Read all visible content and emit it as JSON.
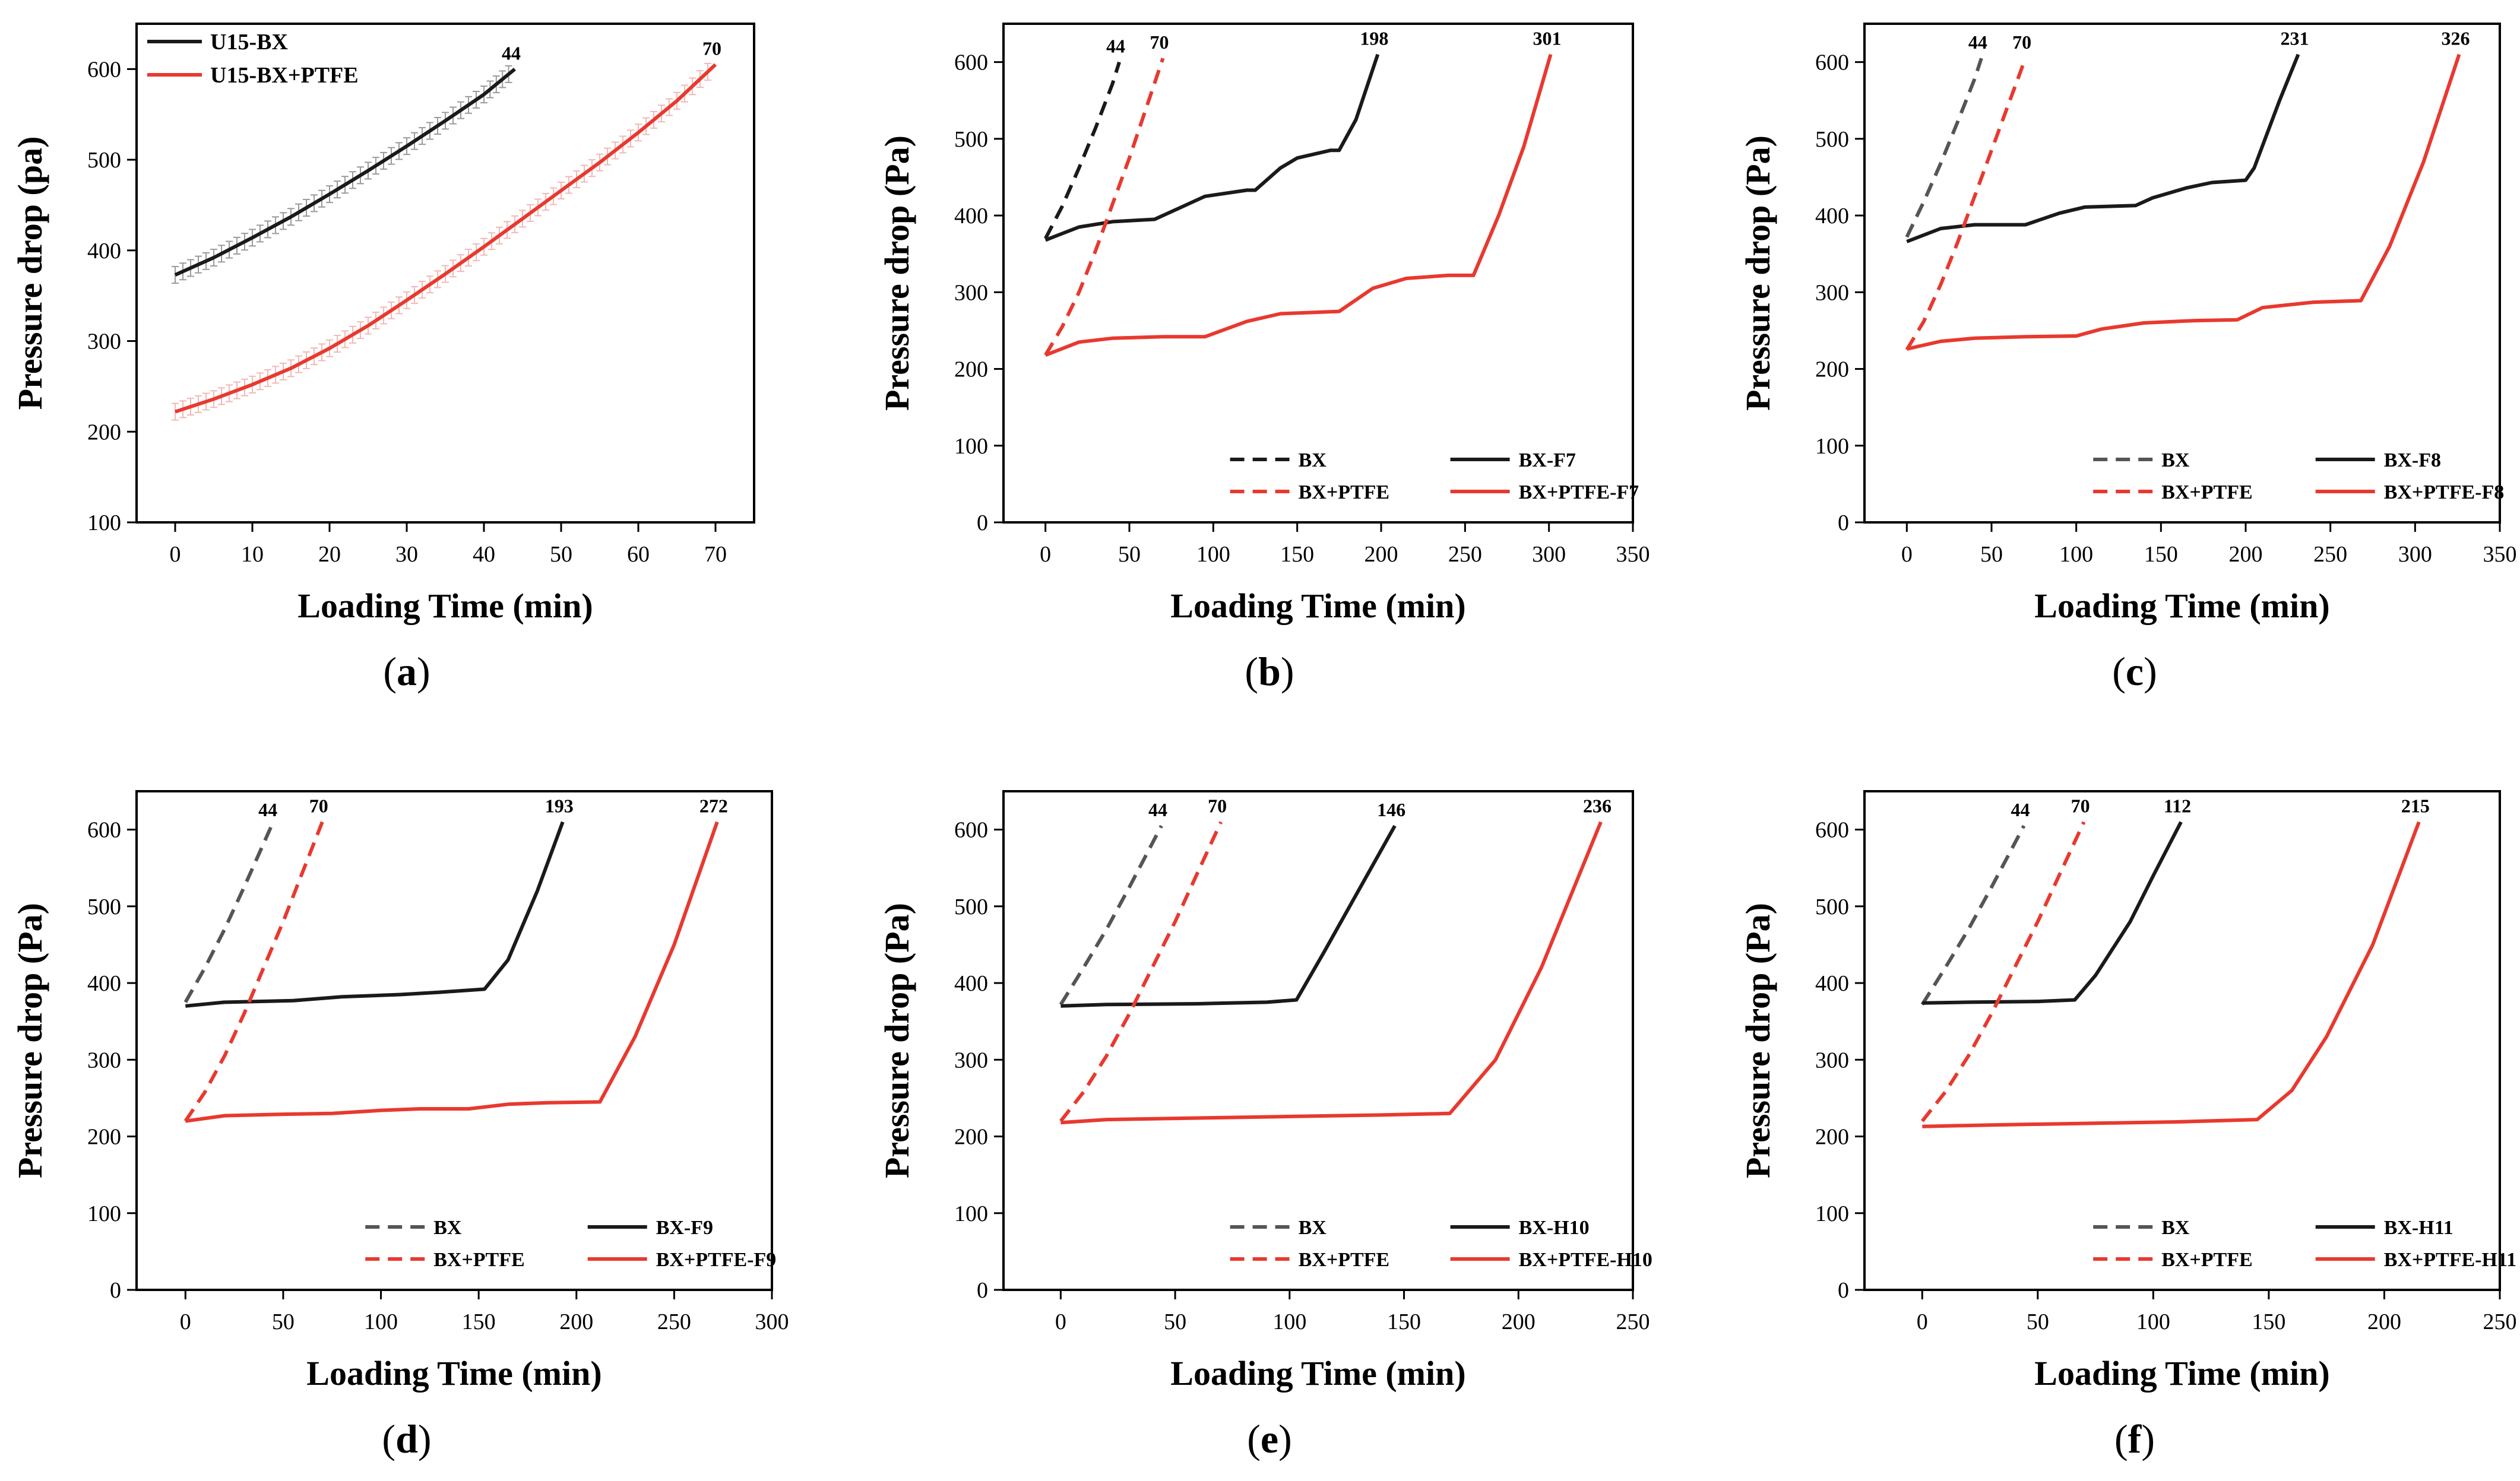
{
  "figure": {
    "captions": [
      "a",
      "b",
      "c",
      "d",
      "e",
      "f"
    ]
  },
  "colors": {
    "black": "#1a1a1a",
    "gray": "#555555",
    "red": "#e8392f",
    "errorbar": "#f2b8b4"
  },
  "chart_data": [
    {
      "panel": "a",
      "type": "line",
      "xlabel": "Loading Time (min)",
      "ylabel": "Pressure drop (pa)",
      "xlim": [
        -5,
        75
      ],
      "ylim": [
        100,
        650
      ],
      "xticks": [
        0,
        10,
        20,
        30,
        40,
        50,
        60,
        70
      ],
      "yticks": [
        100,
        200,
        300,
        400,
        500,
        600
      ],
      "legend": "top-left",
      "series": [
        {
          "name": "U15-BX",
          "color": "black",
          "dash": "solid",
          "legend": true,
          "errorbars": true,
          "end_label": "44",
          "x": [
            0,
            5,
            10,
            15,
            20,
            25,
            30,
            35,
            40,
            44
          ],
          "y": [
            373,
            392,
            414,
            437,
            462,
            488,
            515,
            543,
            572,
            600
          ]
        },
        {
          "name": "U15-BX+PTFE",
          "color": "red",
          "dash": "solid",
          "legend": true,
          "errorbars": true,
          "end_label": "70",
          "x": [
            0,
            5,
            10,
            15,
            20,
            25,
            30,
            35,
            40,
            45,
            50,
            55,
            60,
            65,
            70
          ],
          "y": [
            222,
            236,
            252,
            270,
            292,
            317,
            345,
            374,
            404,
            435,
            466,
            497,
            530,
            565,
            605
          ]
        }
      ]
    },
    {
      "panel": "b",
      "type": "line",
      "xlabel": "Loading Time (min)",
      "ylabel": "Pressure drop (Pa)",
      "xlim": [
        -25,
        350
      ],
      "ylim": [
        0,
        650
      ],
      "xticks": [
        0,
        50,
        100,
        150,
        200,
        250,
        300,
        350
      ],
      "yticks": [
        0,
        100,
        200,
        300,
        400,
        500,
        600
      ],
      "legend": "bottom-right",
      "series": [
        {
          "name": "BX",
          "color": "black",
          "dash": "dashed",
          "legend": true,
          "end_label": "44",
          "x": [
            0,
            10,
            20,
            30,
            40,
            44
          ],
          "y": [
            370,
            412,
            462,
            515,
            572,
            600
          ]
        },
        {
          "name": "BX-F7",
          "color": "black",
          "dash": "solid",
          "legend": true,
          "end_label": "198",
          "x": [
            0,
            20,
            40,
            65,
            80,
            95,
            120,
            125,
            140,
            150,
            170,
            175,
            185,
            198
          ],
          "y": [
            368,
            385,
            392,
            395,
            410,
            425,
            433,
            433,
            462,
            475,
            485,
            485,
            525,
            610
          ]
        },
        {
          "name": "BX+PTFE",
          "color": "red",
          "dash": "dashed",
          "legend": true,
          "end_label": "70",
          "x": [
            0,
            10,
            20,
            30,
            40,
            50,
            60,
            70
          ],
          "y": [
            218,
            255,
            300,
            355,
            415,
            475,
            540,
            605
          ]
        },
        {
          "name": "BX+PTFE-F7",
          "color": "red",
          "dash": "solid",
          "legend": true,
          "end_label": "301",
          "x": [
            0,
            20,
            40,
            70,
            95,
            120,
            140,
            175,
            195,
            215,
            240,
            255,
            270,
            285,
            301
          ],
          "y": [
            218,
            235,
            240,
            242,
            242,
            262,
            272,
            275,
            305,
            318,
            322,
            322,
            400,
            490,
            610
          ]
        }
      ]
    },
    {
      "panel": "c",
      "type": "line",
      "xlabel": "Loading Time (min)",
      "ylabel": "Pressure drop (Pa)",
      "xlim": [
        -25,
        350
      ],
      "ylim": [
        0,
        650
      ],
      "xticks": [
        0,
        50,
        100,
        150,
        200,
        250,
        300,
        350
      ],
      "yticks": [
        0,
        100,
        200,
        300,
        400,
        500,
        600
      ],
      "legend": "bottom-right",
      "series": [
        {
          "name": "BX",
          "color": "gray",
          "dash": "dashed",
          "legend": true,
          "end_label": "44",
          "x": [
            0,
            10,
            20,
            30,
            40,
            44
          ],
          "y": [
            372,
            418,
            468,
            522,
            578,
            605
          ]
        },
        {
          "name": "BX-F8",
          "color": "black",
          "dash": "solid",
          "legend": true,
          "end_label": "231",
          "x": [
            0,
            20,
            40,
            70,
            90,
            105,
            135,
            145,
            165,
            180,
            200,
            205,
            220,
            231
          ],
          "y": [
            366,
            383,
            388,
            388,
            403,
            411,
            413,
            423,
            436,
            443,
            446,
            462,
            550,
            610
          ]
        },
        {
          "name": "BX+PTFE",
          "color": "red",
          "dash": "dashed",
          "legend": true,
          "end_label": "70",
          "x": [
            0,
            10,
            20,
            30,
            40,
            50,
            60,
            70
          ],
          "y": [
            225,
            262,
            310,
            365,
            425,
            485,
            545,
            605
          ]
        },
        {
          "name": "BX+PTFE-F8",
          "color": "red",
          "dash": "solid",
          "legend": true,
          "end_label": "326",
          "x": [
            0,
            20,
            40,
            70,
            100,
            115,
            140,
            170,
            195,
            210,
            240,
            268,
            285,
            305,
            326
          ],
          "y": [
            226,
            236,
            240,
            242,
            243,
            252,
            260,
            263,
            264,
            280,
            287,
            289,
            360,
            470,
            610
          ]
        }
      ]
    },
    {
      "panel": "d",
      "type": "line",
      "xlabel": "Loading Time (min)",
      "ylabel": "Pressure drop (Pa)",
      "xlim": [
        -25,
        300
      ],
      "ylim": [
        0,
        650
      ],
      "xticks": [
        0,
        50,
        100,
        150,
        200,
        250,
        300
      ],
      "yticks": [
        0,
        100,
        200,
        300,
        400,
        500,
        600
      ],
      "legend": "bottom-right",
      "series": [
        {
          "name": "BX",
          "color": "gray",
          "dash": "dashed",
          "legend": true,
          "end_label": "44",
          "x": [
            0,
            10,
            20,
            30,
            40,
            44
          ],
          "y": [
            375,
            420,
            470,
            525,
            582,
            605
          ]
        },
        {
          "name": "BX-F9",
          "color": "black",
          "dash": "solid",
          "legend": true,
          "end_label": "193",
          "x": [
            0,
            20,
            55,
            80,
            100,
            110,
            130,
            153,
            165,
            180,
            193
          ],
          "y": [
            370,
            375,
            377,
            382,
            384,
            385,
            388,
            392,
            430,
            520,
            610
          ]
        },
        {
          "name": "BX+PTFE",
          "color": "red",
          "dash": "dashed",
          "legend": true,
          "end_label": "70",
          "x": [
            0,
            10,
            20,
            30,
            40,
            50,
            60,
            70
          ],
          "y": [
            220,
            258,
            305,
            360,
            420,
            480,
            545,
            610
          ]
        },
        {
          "name": "BX+PTFE-F9",
          "color": "red",
          "dash": "solid",
          "legend": true,
          "end_label": "272",
          "x": [
            0,
            20,
            50,
            75,
            100,
            120,
            145,
            165,
            185,
            212,
            230,
            250,
            272
          ],
          "y": [
            220,
            227,
            229,
            230,
            234,
            236,
            236,
            242,
            244,
            245,
            330,
            450,
            610
          ]
        }
      ]
    },
    {
      "panel": "e",
      "type": "line",
      "xlabel": "Loading Time (min)",
      "ylabel": "Pressure drop (Pa)",
      "xlim": [
        -25,
        250
      ],
      "ylim": [
        0,
        650
      ],
      "xticks": [
        0,
        50,
        100,
        150,
        200,
        250
      ],
      "yticks": [
        0,
        100,
        200,
        300,
        400,
        500,
        600
      ],
      "legend": "bottom-right",
      "series": [
        {
          "name": "BX",
          "color": "gray",
          "dash": "dashed",
          "legend": true,
          "end_label": "44",
          "x": [
            0,
            10,
            20,
            30,
            40,
            44
          ],
          "y": [
            372,
            420,
            470,
            525,
            582,
            605
          ]
        },
        {
          "name": "BX-H10",
          "color": "black",
          "dash": "solid",
          "legend": true,
          "end_label": "146",
          "x": [
            0,
            20,
            60,
            90,
            103,
            115,
            130,
            146
          ],
          "y": [
            370,
            372,
            373,
            375,
            378,
            440,
            520,
            605
          ]
        },
        {
          "name": "BX+PTFE",
          "color": "red",
          "dash": "dashed",
          "legend": true,
          "end_label": "70",
          "x": [
            0,
            10,
            20,
            30,
            40,
            50,
            60,
            70
          ],
          "y": [
            220,
            258,
            305,
            360,
            420,
            480,
            545,
            610
          ]
        },
        {
          "name": "BX+PTFE-H10",
          "color": "red",
          "dash": "solid",
          "legend": true,
          "end_label": "236",
          "x": [
            0,
            20,
            60,
            100,
            140,
            170,
            190,
            210,
            236
          ],
          "y": [
            218,
            222,
            224,
            226,
            228,
            230,
            300,
            420,
            610
          ]
        }
      ]
    },
    {
      "panel": "f",
      "type": "line",
      "xlabel": "Loading Time (min)",
      "ylabel": "Pressure drop (Pa)",
      "xlim": [
        -25,
        250
      ],
      "ylim": [
        0,
        650
      ],
      "xticks": [
        0,
        50,
        100,
        150,
        200,
        250
      ],
      "yticks": [
        0,
        100,
        200,
        300,
        400,
        500,
        600
      ],
      "legend": "bottom-right",
      "series": [
        {
          "name": "BX",
          "color": "gray",
          "dash": "dashed",
          "legend": true,
          "end_label": "44",
          "x": [
            0,
            10,
            20,
            30,
            40,
            44
          ],
          "y": [
            372,
            420,
            470,
            525,
            582,
            605
          ]
        },
        {
          "name": "BX-H11",
          "color": "black",
          "dash": "solid",
          "legend": true,
          "end_label": "112",
          "x": [
            0,
            20,
            50,
            66,
            75,
            90,
            100,
            112
          ],
          "y": [
            374,
            375,
            376,
            378,
            410,
            480,
            540,
            610
          ]
        },
        {
          "name": "BX+PTFE",
          "color": "red",
          "dash": "dashed",
          "legend": true,
          "end_label": "70",
          "x": [
            0,
            10,
            20,
            30,
            40,
            50,
            60,
            70
          ],
          "y": [
            220,
            258,
            305,
            360,
            420,
            480,
            545,
            610
          ]
        },
        {
          "name": "BX+PTFE-H11",
          "color": "red",
          "dash": "solid",
          "legend": true,
          "end_label": "215",
          "x": [
            0,
            30,
            70,
            110,
            145,
            160,
            175,
            195,
            215
          ],
          "y": [
            213,
            215,
            217,
            219,
            222,
            260,
            330,
            450,
            610
          ]
        }
      ]
    }
  ]
}
